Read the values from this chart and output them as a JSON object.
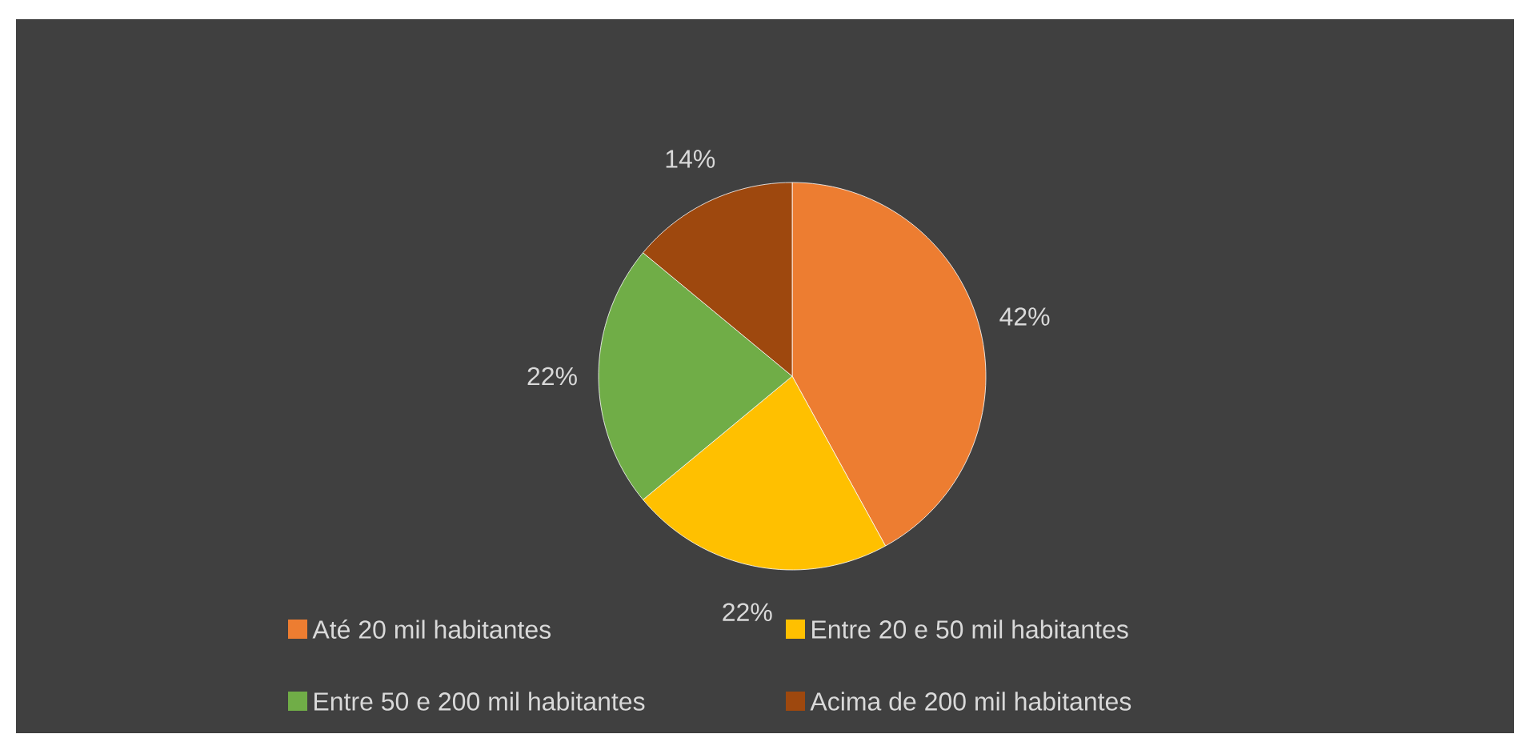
{
  "chart_data": {
    "type": "pie",
    "categories": [
      "Até 20 mil habitantes",
      "Entre 20 e 50 mil habitantes",
      "Entre 50 e 200 mil habitantes",
      "Acima de 200 mil habitantes"
    ],
    "values": [
      42,
      22,
      22,
      14
    ],
    "colors": [
      "#ed7d31",
      "#ffc000",
      "#70ad47",
      "#9e480e"
    ],
    "value_labels": [
      "42%",
      "22%",
      "22%",
      "14%"
    ],
    "legend": "bottom"
  }
}
